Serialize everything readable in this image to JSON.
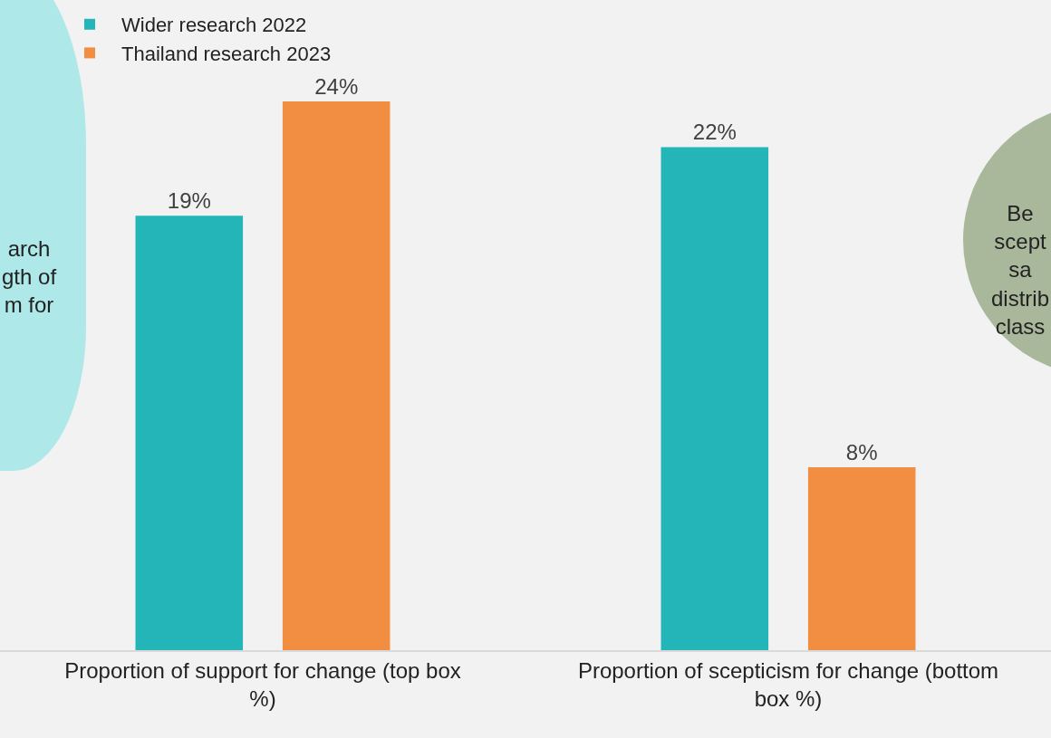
{
  "chart_data": {
    "type": "bar",
    "categories": [
      "Proportion of support for change (top box %)",
      "Proportion of scepticism for change (bottom box %)"
    ],
    "series": [
      {
        "name": "Wider research 2022",
        "color": "#24b5b8",
        "values": [
          19,
          22
        ],
        "value_labels": [
          "19%",
          "22%"
        ]
      },
      {
        "name": "Thailand research 2023",
        "color": "#f28e42",
        "values": [
          24,
          8
        ],
        "value_labels": [
          "24%",
          "8%"
        ]
      }
    ],
    "legend": "top",
    "annotations": [
      "arch\ngth of\nm for",
      "Be\nscept\nsa\ndistrib\nclass"
    ]
  }
}
